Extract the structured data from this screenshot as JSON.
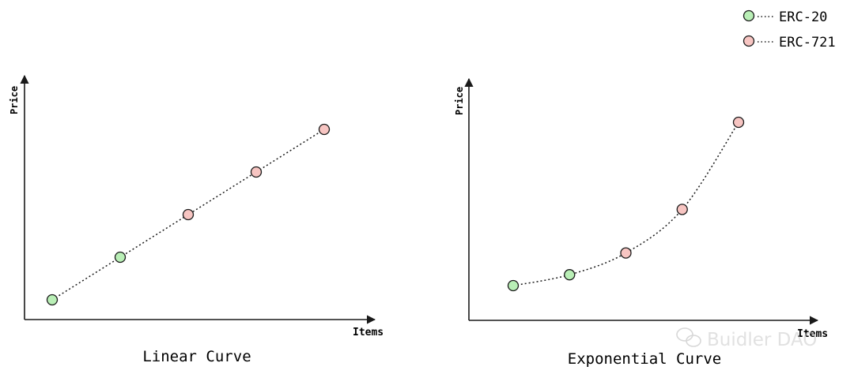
{
  "legend": {
    "items": [
      {
        "label": "ERC-20",
        "color": "#b9efb6"
      },
      {
        "label": "ERC-721",
        "color": "#f7c5c2"
      }
    ]
  },
  "charts": [
    {
      "title": "Linear Curve",
      "x_label": "Items",
      "y_label": "Price",
      "curve": "linear",
      "points": [
        {
          "x": 1,
          "y": 1,
          "group": "ERC-20"
        },
        {
          "x": 2,
          "y": 2,
          "group": "ERC-20"
        },
        {
          "x": 3,
          "y": 3,
          "group": "ERC-721"
        },
        {
          "x": 4,
          "y": 4,
          "group": "ERC-721"
        },
        {
          "x": 5,
          "y": 5,
          "group": "ERC-721"
        }
      ]
    },
    {
      "title": "Exponential Curve",
      "x_label": "Items",
      "y_label": "Price",
      "curve": "exponential",
      "points": [
        {
          "x": 1,
          "y": 1,
          "group": "ERC-20"
        },
        {
          "x": 2,
          "y": 2,
          "group": "ERC-20"
        },
        {
          "x": 3,
          "y": 4,
          "group": "ERC-721"
        },
        {
          "x": 4,
          "y": 8,
          "group": "ERC-721"
        },
        {
          "x": 5,
          "y": 16,
          "group": "ERC-721"
        }
      ]
    }
  ],
  "watermark": "Buidler DAO",
  "colors": {
    "erc20": "#b9efb6",
    "erc721": "#f7c5c2",
    "stroke": "#1a1a1a"
  }
}
